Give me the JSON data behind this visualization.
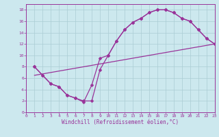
{
  "xlabel": "Windchill (Refroidissement éolien,°C)",
  "xlim": [
    0,
    23
  ],
  "ylim": [
    0,
    19
  ],
  "xticks": [
    0,
    1,
    2,
    3,
    4,
    5,
    6,
    7,
    8,
    9,
    10,
    11,
    12,
    13,
    14,
    15,
    16,
    17,
    18,
    19,
    20,
    21,
    22,
    23
  ],
  "yticks": [
    0,
    2,
    4,
    6,
    8,
    10,
    12,
    14,
    16,
    18
  ],
  "background_color": "#cce8ee",
  "grid_color": "#aaccd4",
  "line_color": "#993399",
  "line1_x": [
    1,
    2,
    3,
    4,
    5,
    6,
    7,
    8,
    9,
    10,
    11,
    12,
    13,
    14,
    15,
    16,
    17,
    18,
    19,
    20,
    21,
    22,
    23
  ],
  "line1_y": [
    8,
    6.5,
    5,
    4.5,
    3.0,
    2.5,
    2.0,
    2.0,
    7.5,
    10,
    12.5,
    14.5,
    15.8,
    16.5,
    17.5,
    18,
    18,
    17.5,
    16.5,
    16,
    14.5,
    13,
    12
  ],
  "line2_x": [
    1,
    2,
    3,
    4,
    5,
    6,
    7,
    8,
    9,
    10,
    11,
    12,
    13,
    14,
    15,
    16,
    17,
    18,
    19,
    20,
    21,
    22,
    23
  ],
  "line2_y": [
    8,
    6.5,
    5,
    4.5,
    3.0,
    2.5,
    1.8,
    4.8,
    9.5,
    10,
    12.5,
    14.5,
    15.8,
    16.5,
    17.5,
    18,
    18,
    17.5,
    16.5,
    16,
    14.5,
    13,
    12
  ],
  "line3_x": [
    1,
    23
  ],
  "line3_y": [
    6.5,
    12
  ],
  "marker": "D",
  "marker_size": 2.5,
  "line_width": 0.9,
  "tick_fontsize": 4.5,
  "xlabel_fontsize": 5.5
}
